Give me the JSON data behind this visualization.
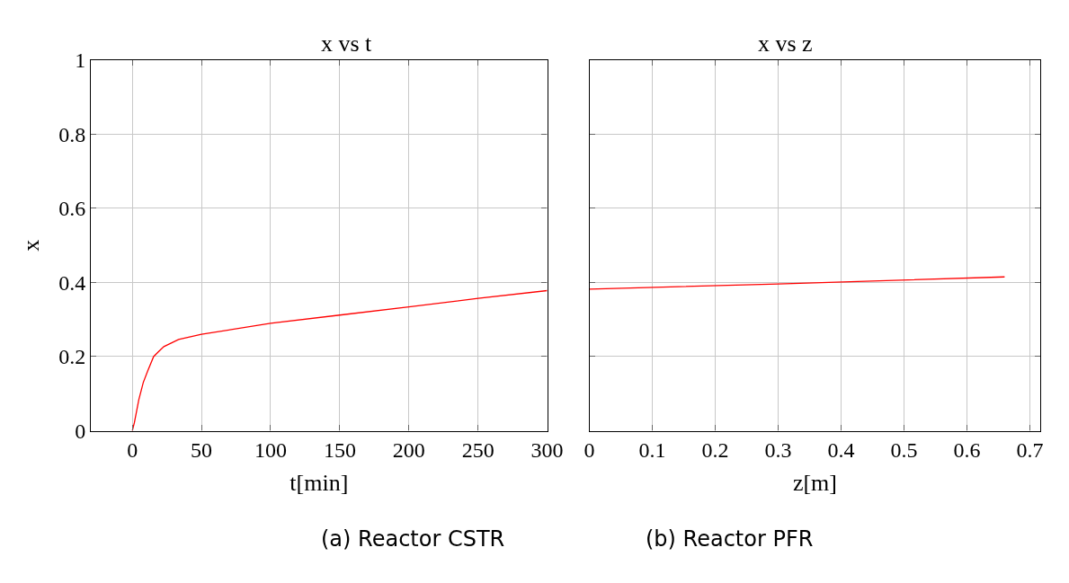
{
  "chart_data": [
    {
      "type": "line",
      "title": "x vs t",
      "xlabel": "t[min]",
      "ylabel": "x",
      "grid": true,
      "marker": "none",
      "line_style": "solid",
      "x": [
        0,
        1.5,
        4.7,
        7.9,
        11.1,
        15.4,
        18.6,
        22.8,
        33.5,
        50,
        100,
        150,
        200,
        250,
        300
      ],
      "series": [
        {
          "color": "#ff0000",
          "values": [
            0,
            0.022,
            0.084,
            0.13,
            0.161,
            0.2,
            0.212,
            0.227,
            0.246,
            0.26,
            0.29,
            0.312,
            0.334,
            0.357,
            0.378
          ]
        }
      ],
      "xlim": [
        -30,
        300
      ],
      "xticks": [
        0,
        50,
        100,
        150,
        200,
        250,
        300
      ],
      "ylim": [
        0,
        1
      ],
      "yticks": [
        0,
        0.2,
        0.4,
        0.6,
        0.8,
        1
      ],
      "annotations": [
        "(a) Reactor CSTR"
      ]
    },
    {
      "type": "line",
      "title": "x vs z",
      "xlabel": "z[m]",
      "grid": true,
      "marker": "none",
      "line_style": "solid",
      "tick_labels": "x",
      "x": [
        0,
        0.3,
        0.66
      ],
      "series": [
        {
          "color": "#ff0000",
          "values": [
            0.382,
            0.396,
            0.415
          ]
        }
      ],
      "xlim": [
        0,
        0.717
      ],
      "xticks": [
        0,
        0.1,
        0.2,
        0.3,
        0.4,
        0.5,
        0.6,
        0.7
      ],
      "ylim": [
        0,
        1
      ],
      "yticks": [
        0,
        0.2,
        0.4,
        0.6,
        0.8,
        1
      ],
      "annotations": [
        "(b) Reactor PFR"
      ]
    }
  ]
}
